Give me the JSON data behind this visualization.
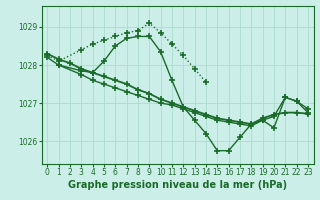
{
  "background_color": "#cceee8",
  "grid_color": "#aaddcc",
  "line_color": "#1a6b2a",
  "xlabel": "Graphe pression niveau de la mer (hPa)",
  "xlabel_fontsize": 7,
  "ylim": [
    1025.4,
    1029.55
  ],
  "xlim": [
    -0.5,
    23.5
  ],
  "yticks": [
    1026,
    1027,
    1028,
    1029
  ],
  "xticks": [
    0,
    1,
    2,
    3,
    4,
    5,
    6,
    7,
    8,
    9,
    10,
    11,
    12,
    13,
    14,
    15,
    16,
    17,
    18,
    19,
    20,
    21,
    22,
    23
  ],
  "series": [
    {
      "x": [
        0,
        1,
        3,
        4,
        5,
        6,
        7,
        8,
        9,
        10,
        11,
        12,
        13,
        14
      ],
      "y": [
        1028.25,
        1028.1,
        1028.4,
        1028.55,
        1028.65,
        1028.75,
        1028.85,
        1028.9,
        1029.1,
        1028.85,
        1028.55,
        1028.25,
        1027.9,
        1027.55
      ],
      "linestyle": ":",
      "linewidth": 1.0,
      "marker": "+",
      "markersize": 4.5
    },
    {
      "x": [
        0,
        1,
        3,
        4,
        5,
        6,
        7,
        8,
        9,
        10,
        11,
        12,
        13,
        14,
        15,
        16,
        17,
        18,
        19,
        20,
        21,
        22,
        23
      ],
      "y": [
        1028.2,
        1028.0,
        1027.75,
        1027.6,
        1027.5,
        1027.4,
        1027.3,
        1027.2,
        1027.1,
        1027.0,
        1026.95,
        1026.85,
        1026.75,
        1026.65,
        1026.55,
        1026.5,
        1026.45,
        1026.4,
        1026.55,
        1026.65,
        1027.15,
        1027.05,
        1026.85
      ],
      "linestyle": "-",
      "linewidth": 1.0,
      "marker": "+",
      "markersize": 4.5
    },
    {
      "x": [
        0,
        1,
        2,
        3,
        4,
        5,
        6,
        7,
        8,
        9,
        10,
        11,
        12,
        13,
        14,
        15,
        16,
        17,
        18,
        19,
        20,
        21,
        22,
        23
      ],
      "y": [
        1028.3,
        1028.15,
        1028.05,
        1027.9,
        1027.8,
        1027.7,
        1027.6,
        1027.5,
        1027.35,
        1027.25,
        1027.1,
        1027.0,
        1026.9,
        1026.8,
        1026.7,
        1026.6,
        1026.55,
        1026.5,
        1026.45,
        1026.6,
        1026.7,
        1026.75,
        1026.75,
        1026.72
      ],
      "linestyle": "-",
      "linewidth": 1.3,
      "marker": "+",
      "markersize": 4.5
    },
    {
      "x": [
        1,
        3,
        4,
        5,
        6,
        7,
        8,
        9,
        10,
        11,
        12,
        13,
        14,
        15,
        16,
        17,
        18,
        19,
        20,
        21,
        22,
        23
      ],
      "y": [
        1028.0,
        1027.85,
        1027.8,
        1028.1,
        1028.5,
        1028.7,
        1028.75,
        1028.75,
        1028.35,
        1027.6,
        1026.9,
        1026.55,
        1026.2,
        1025.75,
        1025.75,
        1026.1,
        1026.45,
        1026.55,
        1026.35,
        1027.15,
        1027.05,
        1026.75
      ],
      "linestyle": "-",
      "linewidth": 1.0,
      "marker": "+",
      "markersize": 4.5
    }
  ]
}
